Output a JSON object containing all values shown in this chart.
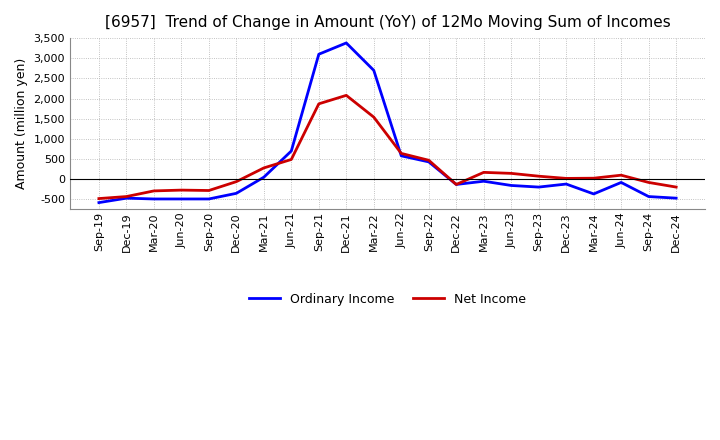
{
  "title": "[6957]  Trend of Change in Amount (YoY) of 12Mo Moving Sum of Incomes",
  "ylabel": "Amount (million yen)",
  "x_labels": [
    "Sep-19",
    "Dec-19",
    "Mar-20",
    "Jun-20",
    "Sep-20",
    "Dec-20",
    "Mar-21",
    "Jun-21",
    "Sep-21",
    "Dec-21",
    "Mar-22",
    "Jun-22",
    "Sep-22",
    "Dec-22",
    "Mar-23",
    "Jun-23",
    "Sep-23",
    "Dec-23",
    "Mar-24",
    "Jun-24",
    "Sep-24",
    "Dec-24"
  ],
  "ordinary_income": [
    -580,
    -470,
    -490,
    -490,
    -490,
    -350,
    50,
    700,
    3100,
    3380,
    2700,
    580,
    430,
    -130,
    -50,
    -155,
    -195,
    -120,
    -365,
    -80,
    -430,
    -470
  ],
  "net_income": [
    -480,
    -430,
    -290,
    -270,
    -280,
    -60,
    280,
    490,
    1870,
    2080,
    1540,
    640,
    470,
    -130,
    170,
    145,
    75,
    20,
    25,
    100,
    -80,
    -195
  ],
  "ordinary_color": "#0000ff",
  "net_color": "#cc0000",
  "ylim_min": -750,
  "ylim_max": 3500,
  "yticks": [
    -500,
    0,
    500,
    1000,
    1500,
    2000,
    2500,
    3000,
    3500
  ],
  "legend_ordinary": "Ordinary Income",
  "legend_net": "Net Income",
  "background_color": "#ffffff",
  "grid_color": "#b0b0b0",
  "linewidth": 2.0,
  "title_fontsize": 11,
  "ylabel_fontsize": 9,
  "tick_fontsize": 8
}
